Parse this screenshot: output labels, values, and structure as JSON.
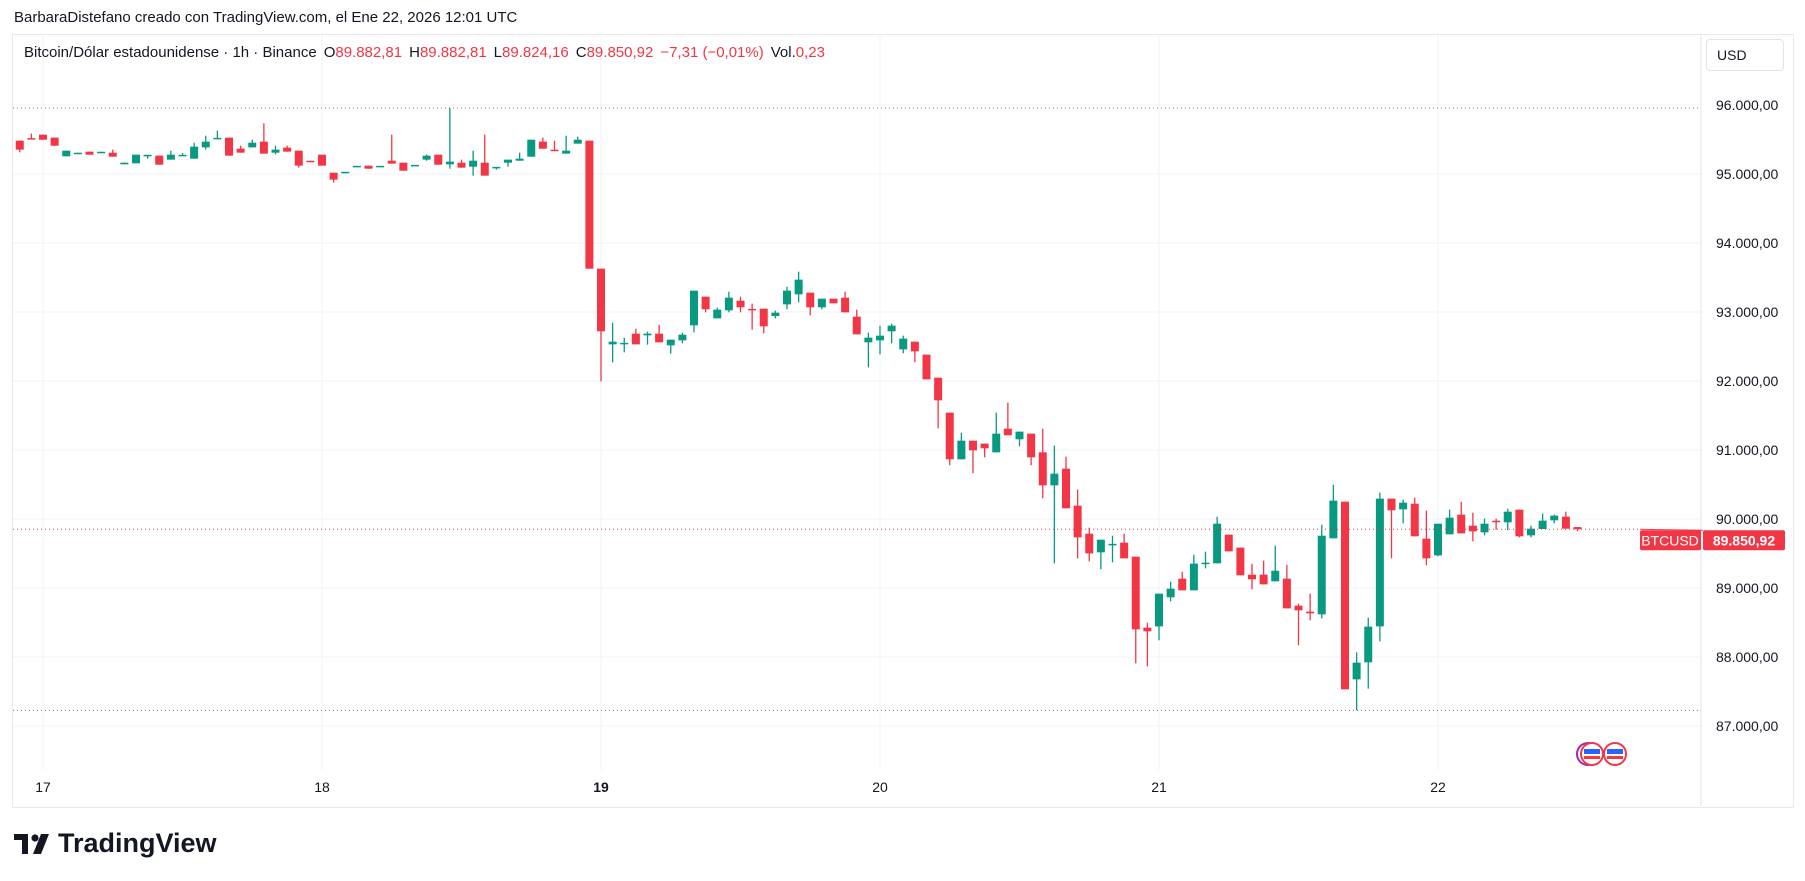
{
  "header": {
    "attribution": "BarbaraDistefano creado con TradingView.com, el Ene 22, 2026 12:01 UTC"
  },
  "legend": {
    "symbol": "Bitcoin/Dólar estadounidense · 1h · Binance",
    "o_label": "O",
    "o": "89.882,81",
    "h_label": "H",
    "h": "89.882,81",
    "l_label": "L",
    "l": "89.824,16",
    "c_label": "C",
    "c": "89.850,92",
    "change": "−7,31 (−0,01%)",
    "vol_label": "Vol.",
    "vol": "0,23"
  },
  "currency": "USD",
  "price_tag": {
    "symbol": "BTCUSD",
    "price": "89.850,92",
    "value": 89850.92
  },
  "logo": "TradingView",
  "colors": {
    "up": "#089981",
    "down": "#F23645",
    "grid": "#f0f3fa"
  },
  "chart_data": {
    "type": "candlestick",
    "title": "Bitcoin/Dólar estadounidense · 1h · Binance",
    "ylim": [
      86400,
      96400
    ],
    "y_ticks": [
      {
        "v": 96000,
        "label": "96.000,00"
      },
      {
        "v": 95000,
        "label": "95.000,00"
      },
      {
        "v": 94000,
        "label": "94.000,00"
      },
      {
        "v": 93000,
        "label": "93.000,00"
      },
      {
        "v": 92000,
        "label": "92.000,00"
      },
      {
        "v": 91000,
        "label": "91.000,00"
      },
      {
        "v": 90000,
        "label": "90.000,00"
      },
      {
        "v": 89000,
        "label": "89.000,00"
      },
      {
        "v": 88000,
        "label": "88.000,00"
      },
      {
        "v": 87000,
        "label": "87.000,00"
      }
    ],
    "x_ticks": [
      {
        "hour_index": 2,
        "label": "17"
      },
      {
        "hour_index": 26,
        "label": "18"
      },
      {
        "hour_index": 50,
        "label": "19",
        "bold": true
      },
      {
        "hour_index": 74,
        "label": "20"
      },
      {
        "hour_index": 98,
        "label": "21"
      },
      {
        "hour_index": 122,
        "label": "22"
      }
    ],
    "high_line": 95956,
    "low_line": 87227,
    "candles": [
      [
        95483,
        95483,
        95314,
        95353
      ],
      [
        95520,
        95585,
        95510,
        95510
      ],
      [
        95570,
        95570,
        95497,
        95497
      ],
      [
        95527,
        95527,
        95410,
        95410
      ],
      [
        95256,
        95338,
        95256,
        95338
      ],
      [
        95300,
        95308,
        95300,
        95308
      ],
      [
        95324,
        95324,
        95280,
        95280
      ],
      [
        95315,
        95322,
        95315,
        95322
      ],
      [
        95309,
        95353,
        95251,
        95251
      ],
      [
        95140,
        95164,
        95140,
        95164
      ],
      [
        95155,
        95280,
        95155,
        95280
      ],
      [
        95272,
        95278,
        95222,
        95278
      ],
      [
        95266,
        95266,
        95135,
        95135
      ],
      [
        95208,
        95338,
        95208,
        95280
      ],
      [
        95273,
        95304,
        95273,
        95278
      ],
      [
        95222,
        95454,
        95222,
        95396
      ],
      [
        95386,
        95555,
        95353,
        95469
      ],
      [
        95518,
        95628,
        95518,
        95524
      ],
      [
        95527,
        95527,
        95266,
        95266
      ],
      [
        95367,
        95411,
        95309,
        95309
      ],
      [
        95386,
        95497,
        95386,
        95454
      ],
      [
        95469,
        95734,
        95295,
        95295
      ],
      [
        95309,
        95411,
        95285,
        95353
      ],
      [
        95382,
        95411,
        95324,
        95324
      ],
      [
        95338,
        95338,
        95092,
        95121
      ],
      [
        95192,
        95192,
        95186,
        95186
      ],
      [
        95280,
        95280,
        95121,
        95121
      ],
      [
        95019,
        95019,
        94874,
        94918
      ],
      [
        95026,
        95032,
        95026,
        95032
      ],
      [
        95113,
        95118,
        95113,
        95118
      ],
      [
        95121,
        95121,
        95077,
        95077
      ],
      [
        95114,
        95118,
        95114,
        95118
      ],
      [
        95193,
        95570,
        95150,
        95150
      ],
      [
        95164,
        95164,
        95048,
        95048
      ],
      [
        95128,
        95132,
        95128,
        95132
      ],
      [
        95208,
        95280,
        95193,
        95266
      ],
      [
        95280,
        95280,
        95135,
        95135
      ],
      [
        95140,
        95956,
        95077,
        95179
      ],
      [
        95164,
        95208,
        95092,
        95092
      ],
      [
        95106,
        95338,
        94976,
        95193
      ],
      [
        95164,
        95570,
        94976,
        94976
      ],
      [
        95099,
        95103,
        95063,
        95103
      ],
      [
        95164,
        95208,
        95106,
        95208
      ],
      [
        95193,
        95309,
        95193,
        95222
      ],
      [
        95251,
        95497,
        95251,
        95497
      ],
      [
        95469,
        95527,
        95367,
        95367
      ],
      [
        95352,
        95483,
        95346,
        95346
      ],
      [
        95295,
        95555,
        95295,
        95338
      ],
      [
        95440,
        95541,
        95440,
        95497
      ],
      [
        95483,
        95483,
        93628,
        93628
      ],
      [
        93628,
        93628,
        91995,
        92720
      ],
      [
        92531,
        92845,
        92270,
        92570
      ],
      [
        92549,
        92628,
        92415,
        92553
      ],
      [
        92686,
        92758,
        92531,
        92531
      ],
      [
        92662,
        92715,
        92527,
        92686
      ],
      [
        92686,
        92816,
        92560,
        92560
      ],
      [
        92517,
        92599,
        92396,
        92599
      ],
      [
        92589,
        92700,
        92546,
        92671
      ],
      [
        92807,
        93309,
        92705,
        93309
      ],
      [
        93222,
        93222,
        92995,
        93039
      ],
      [
        92908,
        93063,
        92908,
        93034
      ],
      [
        93024,
        93295,
        92995,
        93208
      ],
      [
        93164,
        93222,
        92995,
        93068
      ],
      [
        93045,
        93121,
        92744,
        93041
      ],
      [
        93048,
        93048,
        92691,
        92792
      ],
      [
        92942,
        93019,
        92908,
        92990
      ],
      [
        93111,
        93367,
        93039,
        93309
      ],
      [
        93256,
        93585,
        93140,
        93469
      ],
      [
        93280,
        93280,
        92952,
        93068
      ],
      [
        93068,
        93193,
        93039,
        93193
      ],
      [
        93193,
        93193,
        93126,
        93126
      ],
      [
        93208,
        93295,
        92995,
        92995
      ],
      [
        92932,
        93034,
        92676,
        92676
      ],
      [
        92560,
        92700,
        92198,
        92628
      ],
      [
        92589,
        92802,
        92386,
        92657
      ],
      [
        92720,
        92831,
        92546,
        92802
      ],
      [
        92459,
        92657,
        92401,
        92614
      ],
      [
        92570,
        92570,
        92270,
        92430
      ],
      [
        92382,
        92382,
        92024,
        92024
      ],
      [
        92048,
        92048,
        91314,
        91720
      ],
      [
        91541,
        91541,
        90778,
        90865
      ],
      [
        90865,
        91251,
        90865,
        91135
      ],
      [
        91135,
        91135,
        90662,
        90995
      ],
      [
        91092,
        91092,
        90894,
        91024
      ],
      [
        90966,
        91541,
        90966,
        91237
      ],
      [
        91309,
        91686,
        91213,
        91213
      ],
      [
        91155,
        91266,
        91053,
        91266
      ],
      [
        91237,
        91237,
        90778,
        90894
      ],
      [
        90966,
        91309,
        90299,
        90488
      ],
      [
        90488,
        91063,
        89357,
        90657
      ],
      [
        90729,
        90903,
        90155,
        90155
      ],
      [
        90193,
        90425,
        89430,
        89734
      ],
      [
        89787,
        89874,
        89386,
        89502
      ],
      [
        89517,
        89700,
        89271,
        89700
      ],
      [
        89636,
        89758,
        89372,
        89640
      ],
      [
        89657,
        89787,
        89430,
        89430
      ],
      [
        89454,
        89454,
        87908,
        88401
      ],
      [
        88425,
        88498,
        87865,
        88372
      ],
      [
        88444,
        88918,
        88242,
        88918
      ],
      [
        88865,
        89092,
        88807,
        88990
      ],
      [
        89135,
        89237,
        88966,
        88966
      ],
      [
        88966,
        89483,
        88966,
        89353
      ],
      [
        89353,
        89527,
        89285,
        89367
      ],
      [
        89357,
        90034,
        89357,
        89932
      ],
      [
        89773,
        89773,
        89531,
        89531
      ],
      [
        89585,
        89585,
        89184,
        89184
      ],
      [
        89193,
        89353,
        88981,
        89126
      ],
      [
        89193,
        89396,
        89053,
        89053
      ],
      [
        89097,
        89614,
        89097,
        89251
      ],
      [
        89135,
        89338,
        88705,
        88705
      ],
      [
        88744,
        88773,
        88169,
        88676
      ],
      [
        88657,
        88918,
        88531,
        88633
      ],
      [
        88618,
        89918,
        88560,
        89758
      ],
      [
        89720,
        90498,
        89720,
        90266
      ],
      [
        90251,
        90251,
        87531,
        87531
      ],
      [
        87676,
        88068,
        87227,
        87918
      ],
      [
        87923,
        88570,
        87541,
        88440
      ],
      [
        88444,
        90382,
        88227,
        90295
      ],
      [
        90295,
        90295,
        89430,
        90126
      ],
      [
        90140,
        90280,
        89937,
        90237
      ],
      [
        90222,
        90309,
        89749,
        89749
      ],
      [
        89715,
        90121,
        89329,
        89430
      ],
      [
        89473,
        89932,
        89459,
        89932
      ],
      [
        89778,
        90135,
        89778,
        90019
      ],
      [
        90063,
        90251,
        89792,
        89792
      ],
      [
        89903,
        90092,
        89676,
        89821
      ],
      [
        89807,
        90005,
        89763,
        89932
      ],
      [
        89975,
        90005,
        89845,
        89968
      ],
      [
        89952,
        90150,
        89836,
        90106
      ],
      [
        90135,
        90135,
        89734,
        89749
      ],
      [
        89763,
        89903,
        89734,
        89860
      ],
      [
        89855,
        90077,
        89855,
        89976
      ],
      [
        89981,
        90063,
        89937,
        90048
      ],
      [
        90034,
        90106,
        89860,
        89860
      ],
      [
        89882.81,
        89882.81,
        89824.16,
        89850.92
      ]
    ]
  }
}
